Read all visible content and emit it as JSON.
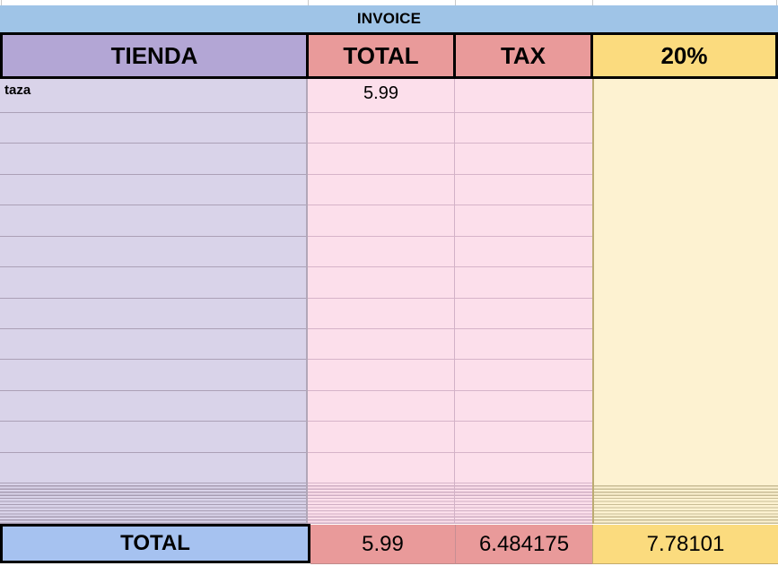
{
  "sheet": {
    "title": "INVOICE",
    "columns": [
      "TIENDA",
      "TOTAL",
      "TAX",
      "20%"
    ],
    "rows": [
      {
        "tienda": "taza",
        "total": "5.99",
        "tax": "",
        "pct": ""
      },
      {
        "tienda": "",
        "total": "",
        "tax": "",
        "pct": ""
      },
      {
        "tienda": "",
        "total": "",
        "tax": "",
        "pct": ""
      },
      {
        "tienda": "",
        "total": "",
        "tax": "",
        "pct": ""
      },
      {
        "tienda": "",
        "total": "",
        "tax": "",
        "pct": ""
      },
      {
        "tienda": "",
        "total": "",
        "tax": "",
        "pct": ""
      },
      {
        "tienda": "",
        "total": "",
        "tax": "",
        "pct": ""
      },
      {
        "tienda": "",
        "total": "",
        "tax": "",
        "pct": ""
      },
      {
        "tienda": "",
        "total": "",
        "tax": "",
        "pct": ""
      },
      {
        "tienda": "",
        "total": "",
        "tax": "",
        "pct": ""
      },
      {
        "tienda": "",
        "total": "",
        "tax": "",
        "pct": ""
      },
      {
        "tienda": "",
        "total": "",
        "tax": "",
        "pct": ""
      },
      {
        "tienda": "",
        "total": "",
        "tax": "",
        "pct": ""
      }
    ],
    "footer": {
      "label": "TOTAL",
      "total": "5.99",
      "tax": "6.484175",
      "pct": "7.78101"
    },
    "colors": {
      "title_blue": "#9fc4e7",
      "footer_blue": "#a6c2f0",
      "header_purple": "#b3a6d5",
      "header_red": "#e99a9a",
      "header_yellow": "#fbdb7e",
      "body_purple": "#d9d3e9",
      "body_pink": "#fcdfeb",
      "body_yellow": "#fdf2d1",
      "border_black": "#000000"
    }
  }
}
